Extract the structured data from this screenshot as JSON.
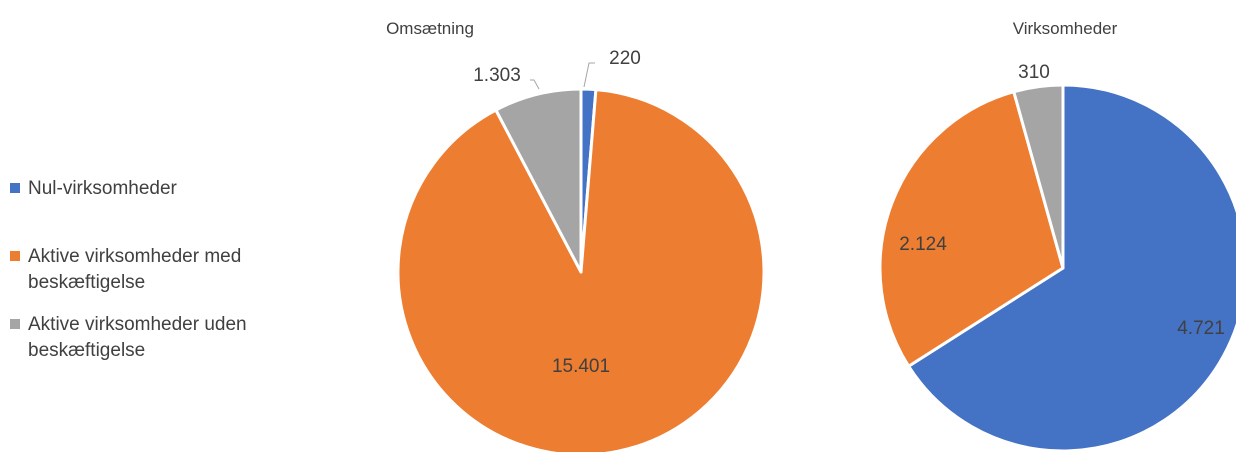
{
  "legend": {
    "items": [
      {
        "label": "Nul-virksomheder",
        "color": "#4472C4"
      },
      {
        "label": "Aktive virksomheder med beskæftigelse",
        "color": "#ED7D31"
      },
      {
        "label": "Aktive virksomheder uden beskæftigelse",
        "color": "#A5A5A5"
      }
    ]
  },
  "chart_data": [
    {
      "type": "pie",
      "title": "Omsætning",
      "categories": [
        "Nul-virksomheder",
        "Aktive virksomheder med beskæftigelse",
        "Aktive virksomheder uden beskæftigelse"
      ],
      "values": [
        220,
        15401,
        1303
      ],
      "labels": [
        "220",
        "15.401",
        "1.303"
      ],
      "colors": [
        "#4472C4",
        "#ED7D31",
        "#A5A5A5"
      ]
    },
    {
      "type": "pie",
      "title": "Virksomheder",
      "categories": [
        "Nul-virksomheder",
        "Aktive virksomheder med beskæftigelse",
        "Aktive virksomheder uden beskæftigelse"
      ],
      "values": [
        4721,
        2124,
        310
      ],
      "labels": [
        "4.721",
        "2.124",
        "310"
      ],
      "colors": [
        "#4472C4",
        "#ED7D31",
        "#A5A5A5"
      ]
    }
  ]
}
